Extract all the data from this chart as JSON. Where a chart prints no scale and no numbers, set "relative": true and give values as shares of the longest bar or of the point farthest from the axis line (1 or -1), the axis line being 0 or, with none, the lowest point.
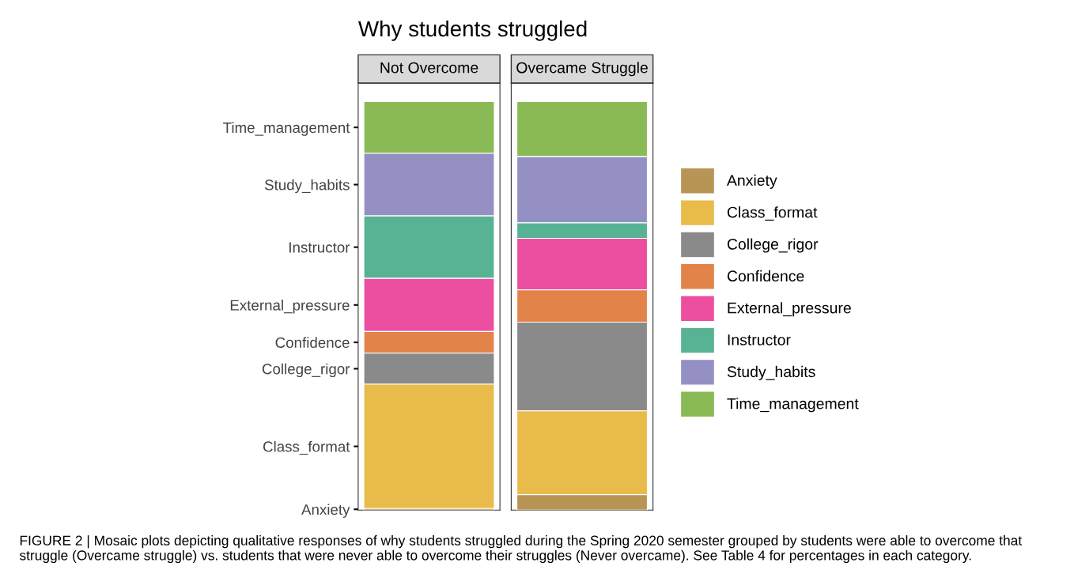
{
  "chart_data": {
    "type": "bar",
    "title": "Why students struggled",
    "relative": true,
    "stacked": true,
    "categories": [
      "Not Overcome",
      "Overcame Struggle"
    ],
    "series": [
      {
        "name": "Anxiety",
        "color": "#b99555",
        "values": [
          0.004,
          0.038
        ]
      },
      {
        "name": "Class_format",
        "color": "#e8bb4b",
        "values": [
          0.304,
          0.205
        ]
      },
      {
        "name": "College_rigor",
        "color": "#8a8a8a",
        "values": [
          0.076,
          0.217
        ]
      },
      {
        "name": "Confidence",
        "color": "#e2844a",
        "values": [
          0.053,
          0.079
        ]
      },
      {
        "name": "External_pressure",
        "color": "#ec4fa0",
        "values": [
          0.13,
          0.126
        ]
      },
      {
        "name": "Instructor",
        "color": "#57b394",
        "values": [
          0.153,
          0.038
        ]
      },
      {
        "name": "Study_habits",
        "color": "#9590c4",
        "values": [
          0.153,
          0.162
        ]
      },
      {
        "name": "Time_management",
        "color": "#8aba55",
        "values": [
          0.127,
          0.135
        ]
      }
    ],
    "legend": "right",
    "annotations": [
      "FIGURE 2 | Mosaic plots depicting qualitative responses of why students struggled during the Spring 2020 semester grouped by students were able to overcome that struggle (Overcame struggle) vs. students that were never able to overcome their struggles (Never overcame). See Table 4 for percentages in each category."
    ]
  }
}
